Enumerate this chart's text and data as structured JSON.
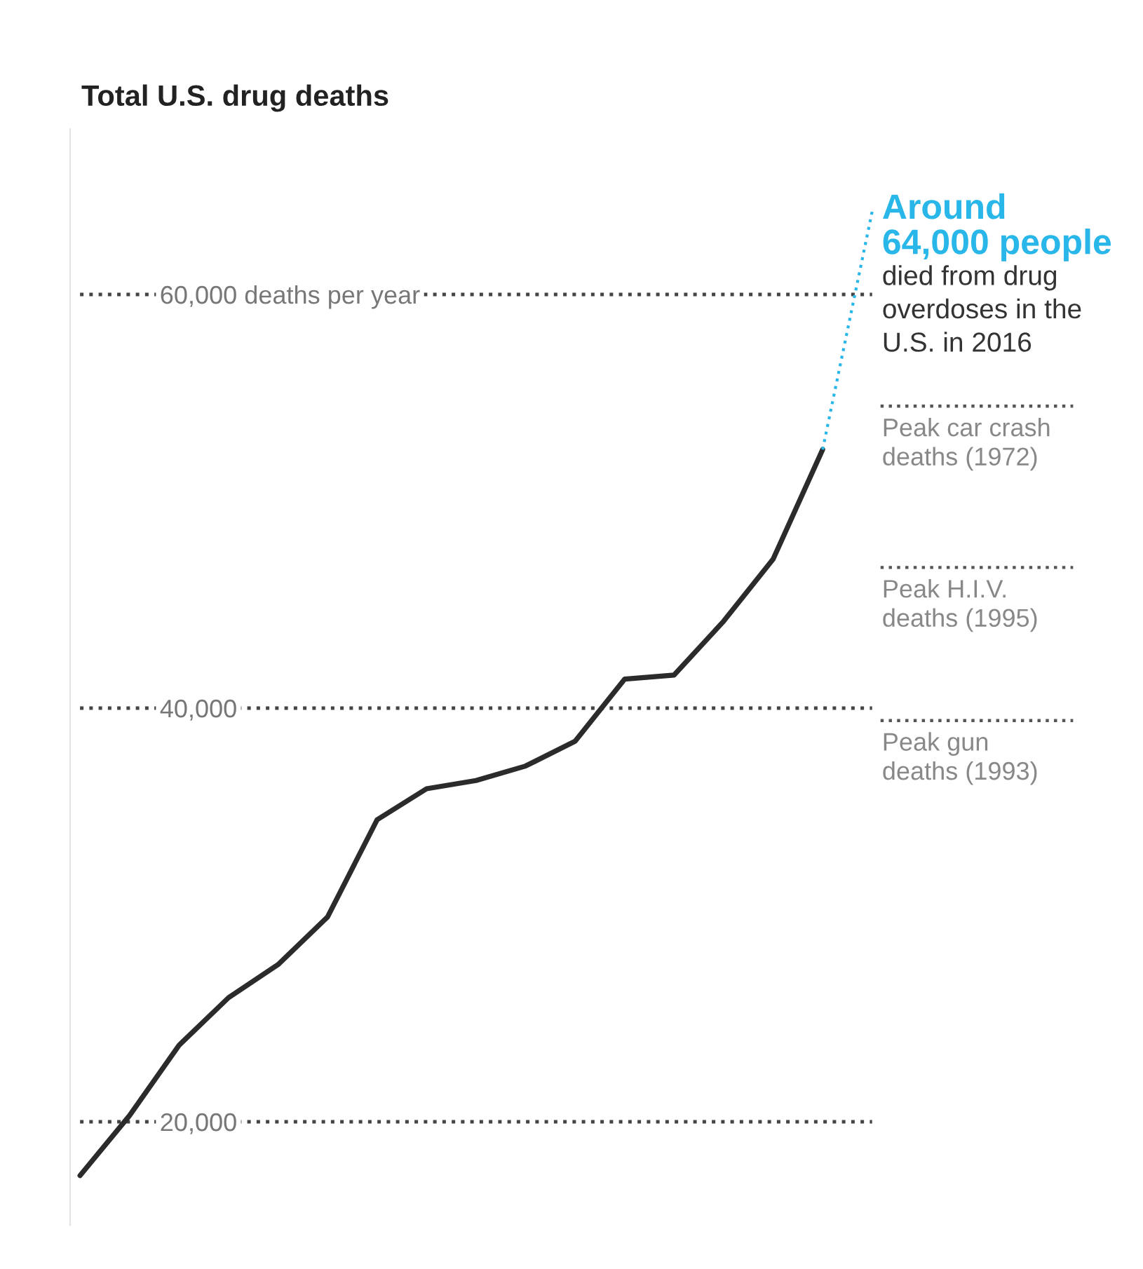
{
  "chart_data": {
    "type": "line",
    "title": "Total U.S. drug deaths",
    "categories": [
      null,
      null,
      null,
      null,
      null,
      null,
      null,
      null,
      null,
      null,
      null,
      null,
      null,
      null,
      null,
      null,
      null
    ],
    "series": [
      {
        "color": "#2b2b2b",
        "line_style": "solid",
        "values": [
          17400,
          20300,
          23700,
          26000,
          27600,
          29900,
          34600,
          36100,
          36500,
          37200,
          38400,
          41400,
          41600,
          44200,
          47200,
          52500,
          null
        ]
      },
      {
        "color": "#29b6e8",
        "line_style": "dotted",
        "values": [
          null,
          null,
          null,
          null,
          null,
          null,
          null,
          null,
          null,
          null,
          null,
          null,
          null,
          null,
          null,
          52500,
          64000
        ]
      }
    ],
    "ylim": [
      15000,
      68000
    ],
    "yticks": [
      {
        "value": 20000,
        "label": "20,000"
      },
      {
        "value": 40000,
        "label": "40,000"
      },
      {
        "value": 60000,
        "label": "60,000 deaths per year"
      }
    ],
    "tick_labels": "y",
    "grid": "y",
    "ref_lines": [
      {
        "axis": "y",
        "value": 54600,
        "label": "Peak car crash\ndeaths (1972)",
        "color": "#555555",
        "line_style": "dotted"
      },
      {
        "axis": "y",
        "value": 46800,
        "label": "Peak H.I.V.\ndeaths (1995)",
        "color": "#555555",
        "line_style": "dotted"
      },
      {
        "axis": "y",
        "value": 39400,
        "label": "Peak gun\ndeaths (1993)",
        "color": "#555555",
        "line_style": "dotted"
      }
    ],
    "annotations": [
      "Around\n64,000 people",
      "died from drug\noverdoses in the\nU.S. in 2016"
    ]
  }
}
